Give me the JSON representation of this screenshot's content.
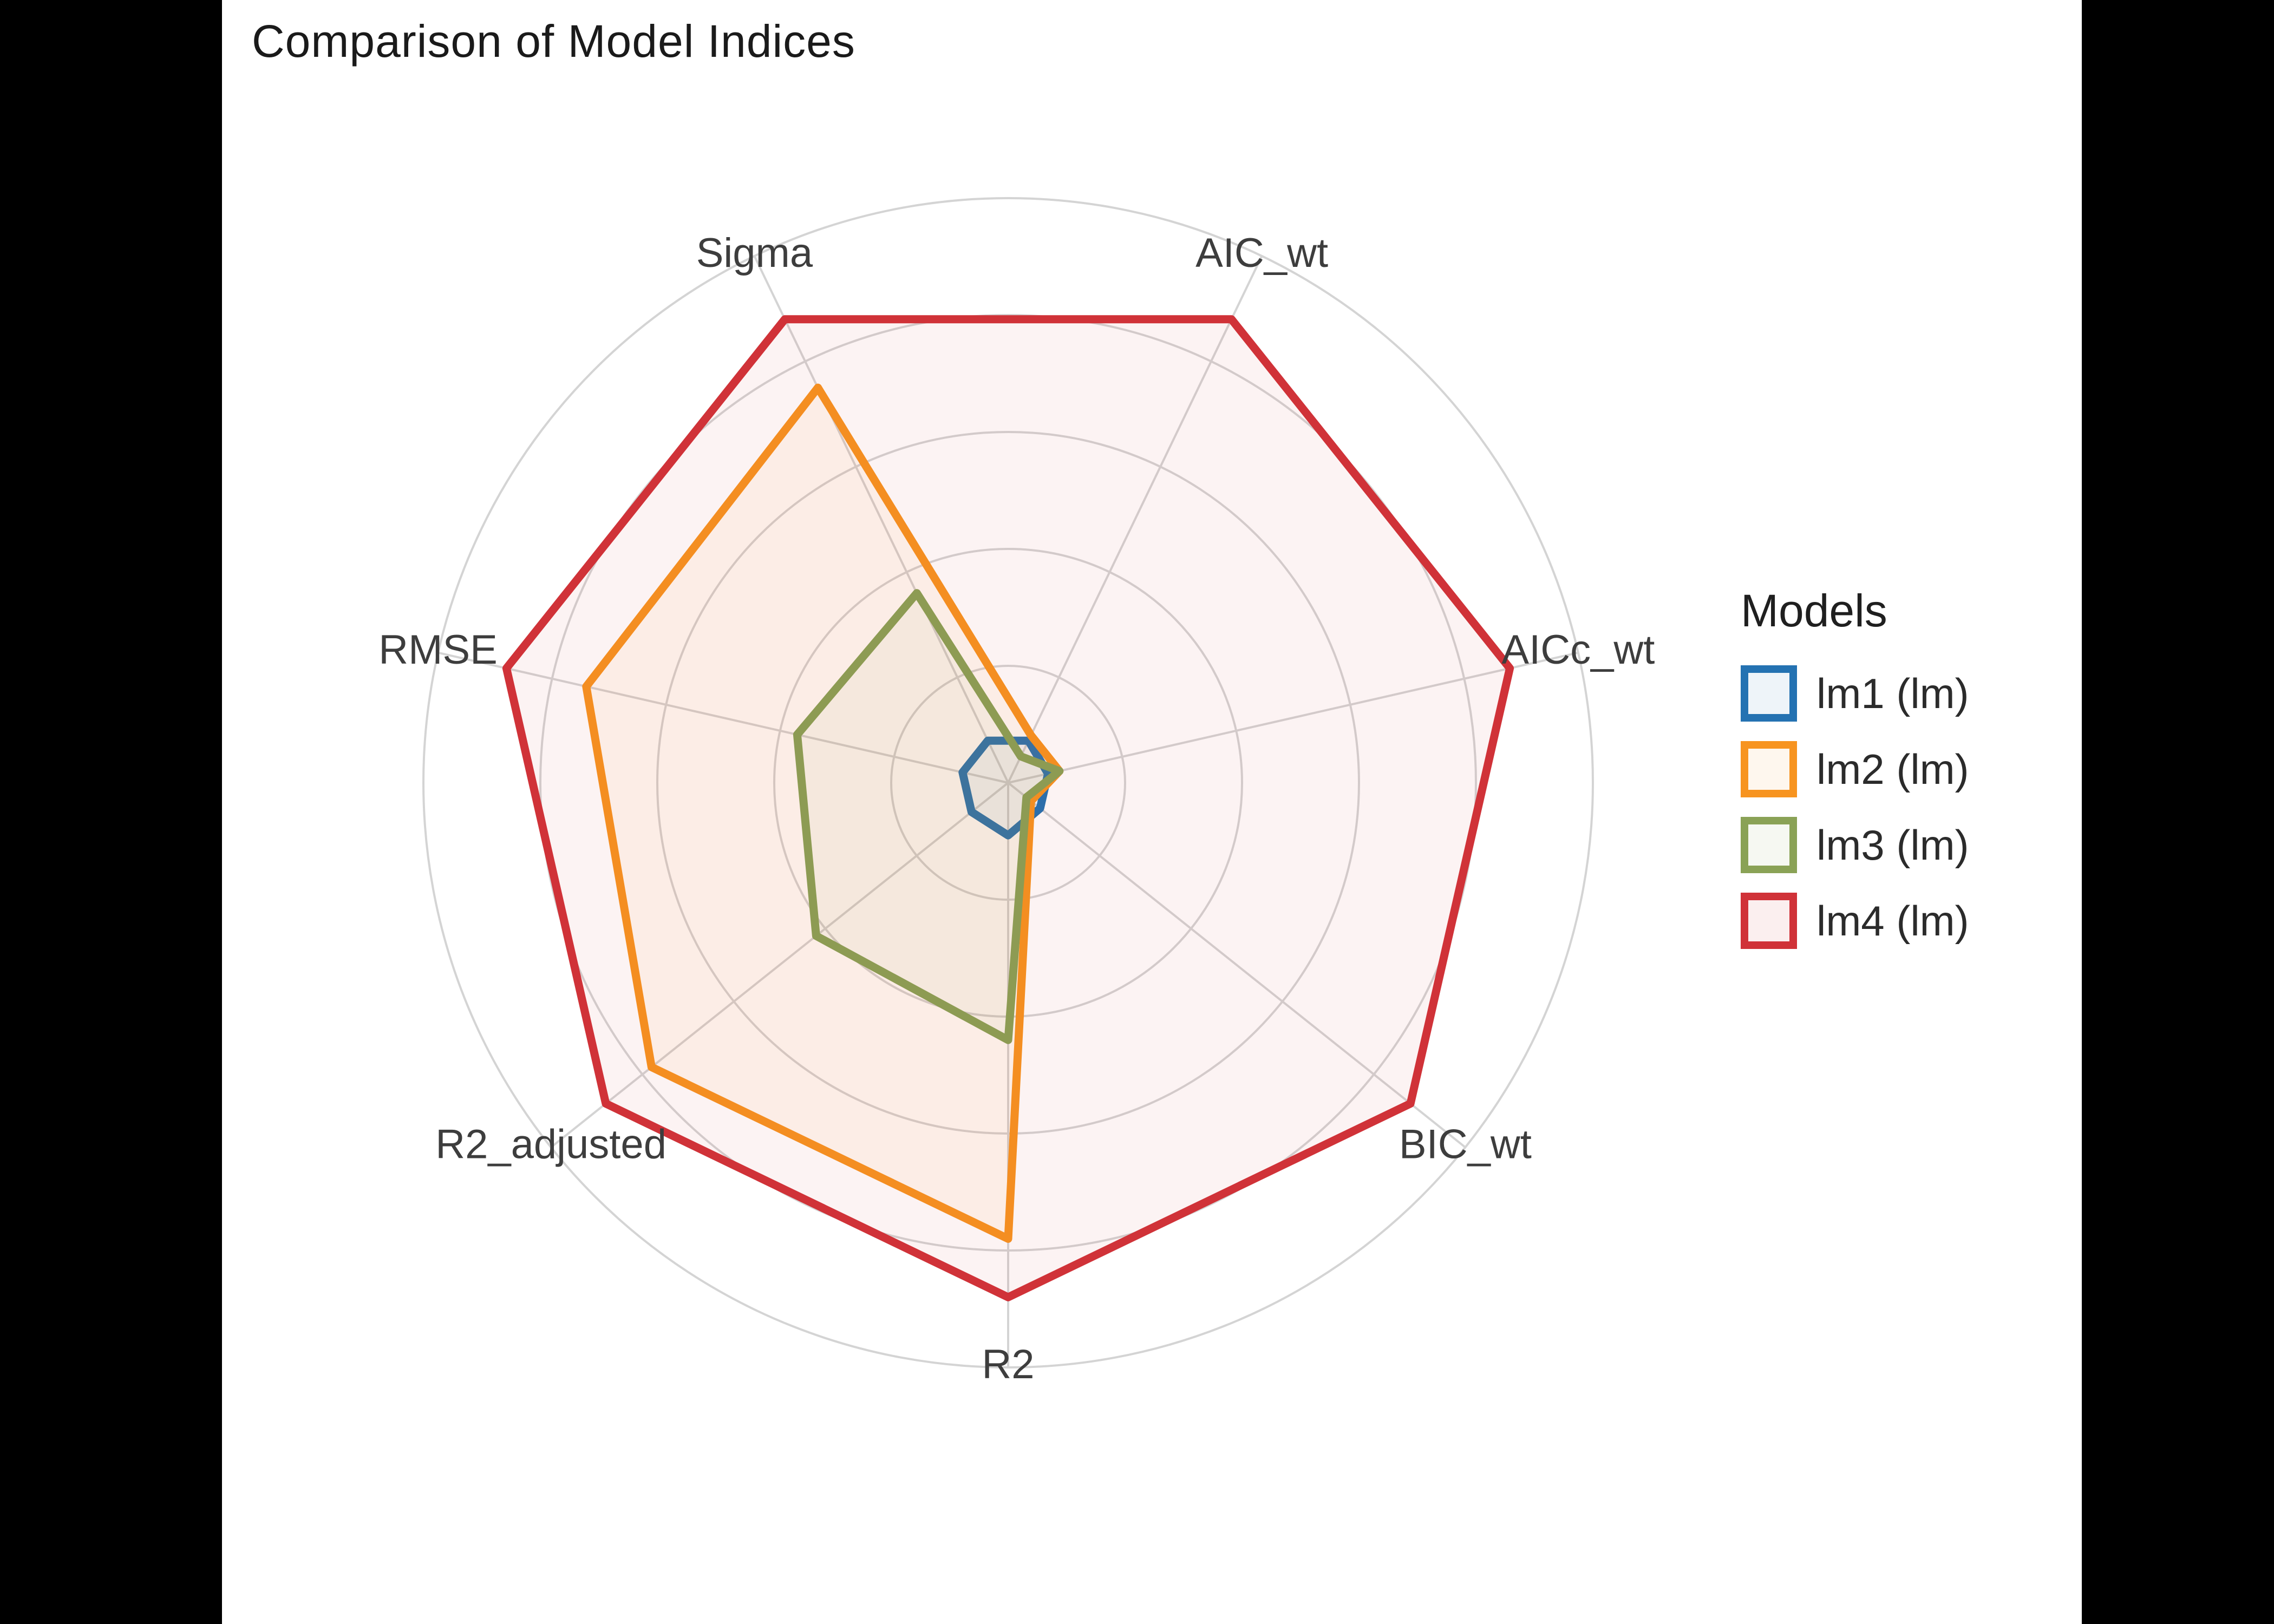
{
  "figure": {
    "outer_background": "#000000",
    "panel_background": "#ffffff"
  },
  "chart_data": {
    "type": "radar",
    "title": "Comparison of Model Indices",
    "axes": [
      "R2",
      "BIC_wt",
      "AICc_wt",
      "AIC_wt",
      "Sigma",
      "RMSE",
      "R2_adjusted"
    ],
    "axis_angles_deg": [
      -90,
      -38.571,
      12.857,
      64.286,
      115.714,
      167.143,
      218.571
    ],
    "radial_range": [
      0,
      1
    ],
    "grid_rings": 5,
    "grid_color": "#d4d4d4",
    "fill_opacity": 0.06,
    "line_width": 15,
    "legend_position": "right",
    "series": [
      {
        "name": "lm1 (lm)",
        "color": "#2472b2",
        "values": [
          0.09,
          0.07,
          0.07,
          0.08,
          0.08,
          0.08,
          0.08
        ]
      },
      {
        "name": "lm2 (lm)",
        "color": "#f79420",
        "values": [
          0.78,
          0.05,
          0.09,
          0.09,
          0.75,
          0.74,
          0.78
        ]
      },
      {
        "name": "lm3 (lm)",
        "color": "#8aa256",
        "values": [
          0.44,
          0.04,
          0.09,
          0.05,
          0.36,
          0.37,
          0.42
        ]
      },
      {
        "name": "lm4 (lm)",
        "color": "#d03238",
        "values": [
          0.88,
          0.88,
          0.88,
          0.88,
          0.88,
          0.88,
          0.88
        ]
      }
    ]
  },
  "legend": {
    "title": "Models",
    "entries": [
      "lm1 (lm)",
      "lm2 (lm)",
      "lm3 (lm)",
      "lm4 (lm)"
    ]
  }
}
